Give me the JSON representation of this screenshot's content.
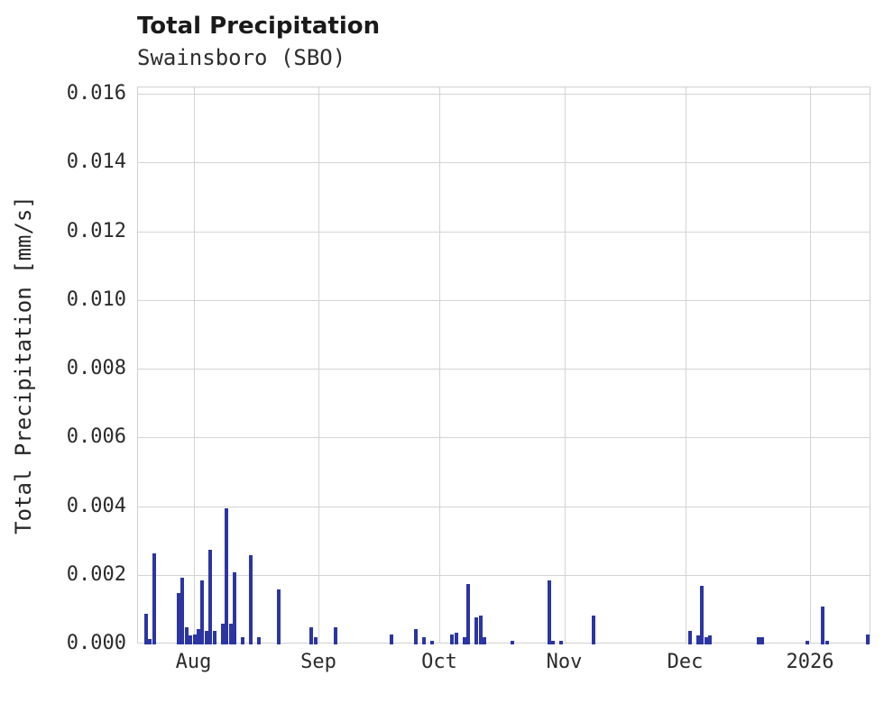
{
  "header": {
    "title": "Total Precipitation",
    "subtitle": "Swainsboro (SBO)"
  },
  "chart_data": {
    "type": "bar",
    "title": "Total Precipitation",
    "subtitle": "Swainsboro (SBO)",
    "xlabel": "",
    "ylabel": "Total Precipitation [mm/s]",
    "x_type": "date",
    "grid": true,
    "legend": false,
    "bar_color": "#2b35a3",
    "ylim": [
      0,
      0.016
    ],
    "xlim": [
      "2025-07-18",
      "2026-01-16"
    ],
    "yticks": [
      {
        "value": 0.0,
        "label": "0.000"
      },
      {
        "value": 0.002,
        "label": "0.002"
      },
      {
        "value": 0.004,
        "label": "0.004"
      },
      {
        "value": 0.006,
        "label": "0.006"
      },
      {
        "value": 0.008,
        "label": "0.008"
      },
      {
        "value": 0.01,
        "label": "0.010"
      },
      {
        "value": 0.012,
        "label": "0.012"
      },
      {
        "value": 0.014,
        "label": "0.014"
      },
      {
        "value": 0.016,
        "label": "0.016"
      }
    ],
    "xticks": [
      {
        "date": "2025-08-01",
        "label": "Aug"
      },
      {
        "date": "2025-09-01",
        "label": "Sep"
      },
      {
        "date": "2025-10-01",
        "label": "Oct"
      },
      {
        "date": "2025-11-01",
        "label": "Nov"
      },
      {
        "date": "2025-12-01",
        "label": "Dec"
      },
      {
        "date": "2026-01-01",
        "label": "2026"
      }
    ],
    "points": [
      {
        "date": "2025-07-20",
        "value": 0.0009
      },
      {
        "date": "2025-07-21",
        "value": 0.00015
      },
      {
        "date": "2025-07-22",
        "value": 0.00265
      },
      {
        "date": "2025-07-28",
        "value": 0.0015
      },
      {
        "date": "2025-07-29",
        "value": 0.00195
      },
      {
        "date": "2025-07-30",
        "value": 0.0005
      },
      {
        "date": "2025-07-31",
        "value": 0.00025
      },
      {
        "date": "2025-08-01",
        "value": 0.0003
      },
      {
        "date": "2025-08-02",
        "value": 0.00045
      },
      {
        "date": "2025-08-03",
        "value": 0.00185
      },
      {
        "date": "2025-08-04",
        "value": 0.0004
      },
      {
        "date": "2025-08-05",
        "value": 0.00275
      },
      {
        "date": "2025-08-06",
        "value": 0.0004
      },
      {
        "date": "2025-08-08",
        "value": 0.0006
      },
      {
        "date": "2025-08-09",
        "value": 0.00395
      },
      {
        "date": "2025-08-10",
        "value": 0.0006
      },
      {
        "date": "2025-08-11",
        "value": 0.0021
      },
      {
        "date": "2025-08-13",
        "value": 0.0002
      },
      {
        "date": "2025-08-15",
        "value": 0.0026
      },
      {
        "date": "2025-08-17",
        "value": 0.0002
      },
      {
        "date": "2025-08-22",
        "value": 0.0016
      },
      {
        "date": "2025-08-30",
        "value": 0.0005
      },
      {
        "date": "2025-08-31",
        "value": 0.0002
      },
      {
        "date": "2025-09-05",
        "value": 0.0005
      },
      {
        "date": "2025-09-19",
        "value": 0.0003
      },
      {
        "date": "2025-09-25",
        "value": 0.00045
      },
      {
        "date": "2025-09-27",
        "value": 0.0002
      },
      {
        "date": "2025-09-29",
        "value": 0.0001
      },
      {
        "date": "2025-10-04",
        "value": 0.0003
      },
      {
        "date": "2025-10-05",
        "value": 0.00035
      },
      {
        "date": "2025-10-07",
        "value": 0.0002
      },
      {
        "date": "2025-10-08",
        "value": 0.00175
      },
      {
        "date": "2025-10-10",
        "value": 0.0008
      },
      {
        "date": "2025-10-11",
        "value": 0.00085
      },
      {
        "date": "2025-10-12",
        "value": 0.0002
      },
      {
        "date": "2025-10-19",
        "value": 0.0001
      },
      {
        "date": "2025-10-28",
        "value": 0.00185
      },
      {
        "date": "2025-10-29",
        "value": 0.0001
      },
      {
        "date": "2025-10-31",
        "value": 0.0001
      },
      {
        "date": "2025-11-08",
        "value": 0.00085
      },
      {
        "date": "2025-12-02",
        "value": 0.0004
      },
      {
        "date": "2025-12-04",
        "value": 0.00025
      },
      {
        "date": "2025-12-05",
        "value": 0.0017
      },
      {
        "date": "2025-12-06",
        "value": 0.0002
      },
      {
        "date": "2025-12-07",
        "value": 0.00025
      },
      {
        "date": "2025-12-19",
        "value": 0.0002
      },
      {
        "date": "2025-12-20",
        "value": 0.0002
      },
      {
        "date": "2025-12-31",
        "value": 0.0001
      },
      {
        "date": "2026-01-04",
        "value": 0.0011
      },
      {
        "date": "2026-01-05",
        "value": 0.0001
      },
      {
        "date": "2026-01-15",
        "value": 0.0003
      }
    ]
  }
}
